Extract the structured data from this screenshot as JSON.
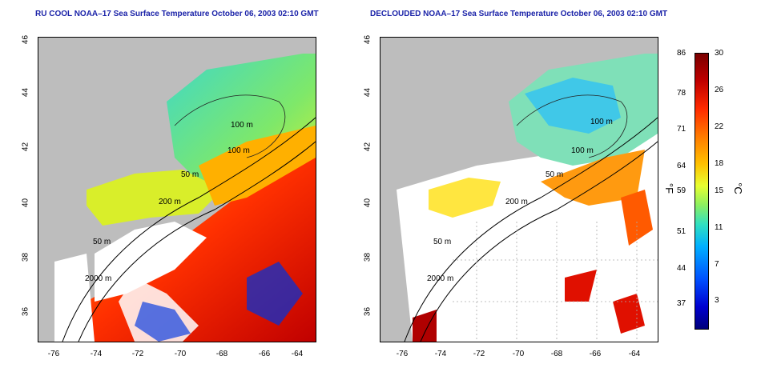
{
  "titles": {
    "left": "RU COOL NOAA–17 Sea Surface Temperature October 06, 2003 02:10 GMT",
    "right": "DECLOUDED NOAA–17 Sea Surface Temperature October 06, 2003 02:10 GMT"
  },
  "axes": {
    "lon_ticks": [
      "-76",
      "-74",
      "-72",
      "-70",
      "-68",
      "-66",
      "-64"
    ],
    "lat_ticks": [
      "46",
      "44",
      "42",
      "40",
      "38",
      "36"
    ]
  },
  "contours": {
    "left": [
      "100 m",
      "100 m",
      "50 m",
      "200 m",
      "50 m",
      "2000 m"
    ],
    "right": [
      "100 m",
      "100 m",
      "50 m",
      "200 m",
      "50 m",
      "2000 m"
    ]
  },
  "colorbar": {
    "fahrenheit_ticks": [
      "86",
      "78",
      "71",
      "64",
      "59",
      "51",
      "44",
      "37"
    ],
    "celsius_ticks": [
      "30",
      "26",
      "22",
      "18",
      "15",
      "11",
      "7",
      "3"
    ],
    "unit_left": "°F",
    "unit_right": "°C"
  },
  "colors": {
    "title": "#1a22a8",
    "land": "#bdbdbd",
    "cloud": "#ffffff"
  }
}
